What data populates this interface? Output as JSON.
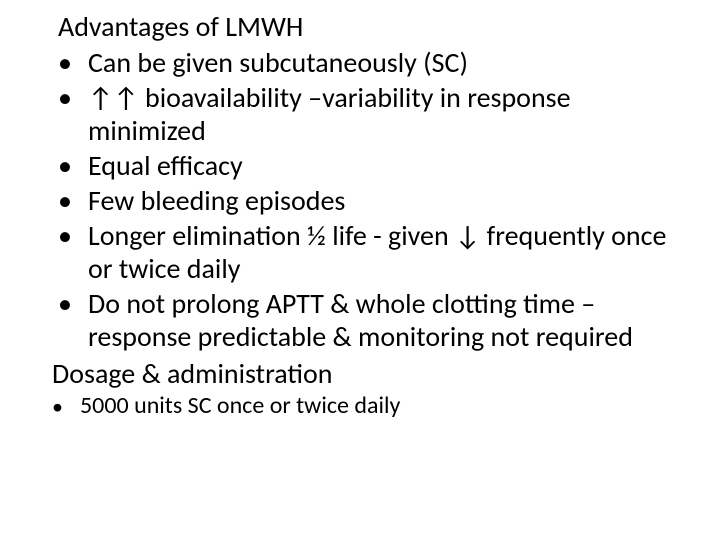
{
  "heading1": "Advantages of LMWH",
  "bullets1": [
    "Can be given subcutaneously (SC)",
    "↑↑ bioavailability –variability in response minimized",
    "Equal efficacy",
    "Few bleeding episodes",
    "Longer elimination ½ life - given ↓ frequently once or twice daily",
    "Do not prolong APTT & whole clotting time – response predictable & monitoring not required"
  ],
  "heading2": "Dosage & administration",
  "bullets2": [
    "5000 units SC once or twice daily"
  ]
}
